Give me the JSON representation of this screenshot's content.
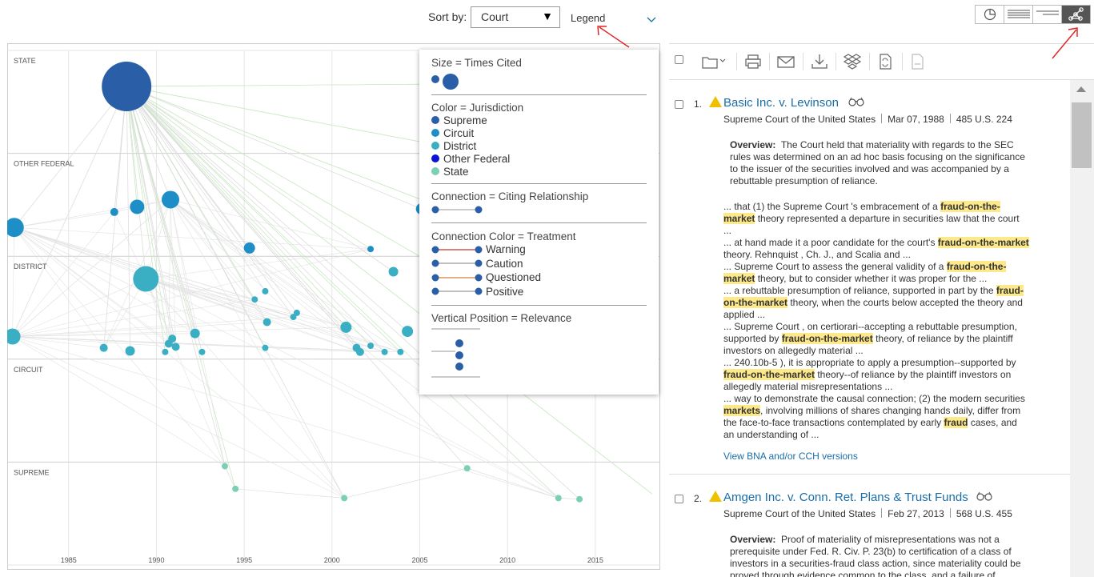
{
  "sort": {
    "label": "Sort by:",
    "value": "Court"
  },
  "legend_toggle": "Legend",
  "view_switch": {
    "items": [
      "pie-chart-icon",
      "full-list-icon",
      "short-list-icon",
      "network-graph-icon"
    ],
    "active": 3
  },
  "colors": {
    "supreme": "#2a5fa8",
    "circuit": "#1e8fc6",
    "district": "#3aafc4",
    "other_federal": "#0a14d8",
    "state": "#7bcfb4",
    "warning": "#c0392b",
    "caution": "#999999",
    "questioned": "#d4813a",
    "positive": "#999999",
    "highlight": "#fde98a",
    "link": "#1a6ea8",
    "flag": "#f0c000"
  },
  "chart_data": {
    "type": "scatter",
    "x_label": "",
    "xlim": [
      1981.5,
      2018.7
    ],
    "x_ticks": [
      1985,
      1990,
      1995,
      2000,
      2005,
      2010,
      2015
    ],
    "lanes": [
      "STATE",
      "OTHER FEDERAL",
      "DISTRICT",
      "CIRCUIT",
      "SUPREME"
    ],
    "grid": true,
    "nodes": [
      {
        "x": 1988.3,
        "lane": "STATE",
        "y": 0.35,
        "size": 31,
        "kind": "supreme"
      },
      {
        "x": 1981.9,
        "lane": "OTHER FEDERAL",
        "y": 0.72,
        "size": 12,
        "kind": "circuit"
      },
      {
        "x": 1987.6,
        "lane": "OTHER FEDERAL",
        "y": 0.57,
        "size": 5,
        "kind": "circuit"
      },
      {
        "x": 1988.9,
        "lane": "OTHER FEDERAL",
        "y": 0.52,
        "size": 9,
        "kind": "circuit"
      },
      {
        "x": 1990.8,
        "lane": "OTHER FEDERAL",
        "y": 0.45,
        "size": 11,
        "kind": "circuit"
      },
      {
        "x": 1995.3,
        "lane": "OTHER FEDERAL",
        "y": 0.92,
        "size": 7,
        "kind": "circuit"
      },
      {
        "x": 2002.2,
        "lane": "OTHER FEDERAL",
        "y": 0.93,
        "size": 4,
        "kind": "circuit"
      },
      {
        "x": 2005.1,
        "lane": "OTHER FEDERAL",
        "y": 0.54,
        "size": 7,
        "kind": "circuit"
      },
      {
        "x": 1981.8,
        "lane": "DISTRICT",
        "y": 0.78,
        "size": 10,
        "kind": "district"
      },
      {
        "x": 1989.4,
        "lane": "DISTRICT",
        "y": 0.22,
        "size": 16,
        "kind": "district"
      },
      {
        "x": 1987.0,
        "lane": "DISTRICT",
        "y": 0.89,
        "size": 5,
        "kind": "district"
      },
      {
        "x": 1988.5,
        "lane": "DISTRICT",
        "y": 0.92,
        "size": 6,
        "kind": "district"
      },
      {
        "x": 1990.7,
        "lane": "DISTRICT",
        "y": 0.85,
        "size": 5,
        "kind": "district"
      },
      {
        "x": 1990.9,
        "lane": "DISTRICT",
        "y": 0.8,
        "size": 5,
        "kind": "district"
      },
      {
        "x": 1991.1,
        "lane": "DISTRICT",
        "y": 0.88,
        "size": 5,
        "kind": "district"
      },
      {
        "x": 1990.5,
        "lane": "DISTRICT",
        "y": 0.93,
        "size": 4,
        "kind": "district"
      },
      {
        "x": 1992.2,
        "lane": "DISTRICT",
        "y": 0.75,
        "size": 6,
        "kind": "district"
      },
      {
        "x": 1992.6,
        "lane": "DISTRICT",
        "y": 0.93,
        "size": 4,
        "kind": "district"
      },
      {
        "x": 1995.6,
        "lane": "DISTRICT",
        "y": 0.42,
        "size": 4,
        "kind": "district"
      },
      {
        "x": 1996.2,
        "lane": "DISTRICT",
        "y": 0.34,
        "size": 4,
        "kind": "district"
      },
      {
        "x": 1996.3,
        "lane": "DISTRICT",
        "y": 0.64,
        "size": 5,
        "kind": "district"
      },
      {
        "x": 1996.2,
        "lane": "DISTRICT",
        "y": 0.89,
        "size": 4,
        "kind": "district"
      },
      {
        "x": 1997.8,
        "lane": "DISTRICT",
        "y": 0.59,
        "size": 4,
        "kind": "district"
      },
      {
        "x": 1998.0,
        "lane": "DISTRICT",
        "y": 0.55,
        "size": 4,
        "kind": "district"
      },
      {
        "x": 2000.8,
        "lane": "DISTRICT",
        "y": 0.69,
        "size": 7,
        "kind": "district"
      },
      {
        "x": 2001.4,
        "lane": "DISTRICT",
        "y": 0.89,
        "size": 5,
        "kind": "district"
      },
      {
        "x": 2001.6,
        "lane": "DISTRICT",
        "y": 0.93,
        "size": 5,
        "kind": "district"
      },
      {
        "x": 2002.2,
        "lane": "DISTRICT",
        "y": 0.87,
        "size": 4,
        "kind": "district"
      },
      {
        "x": 2003.0,
        "lane": "DISTRICT",
        "y": 0.93,
        "size": 4,
        "kind": "district"
      },
      {
        "x": 2003.5,
        "lane": "DISTRICT",
        "y": 0.15,
        "size": 6,
        "kind": "district"
      },
      {
        "x": 2003.9,
        "lane": "DISTRICT",
        "y": 0.93,
        "size": 4,
        "kind": "district"
      },
      {
        "x": 2004.3,
        "lane": "DISTRICT",
        "y": 0.73,
        "size": 7,
        "kind": "district"
      },
      {
        "x": 1993.9,
        "lane": "SUPREME",
        "y": 0.04,
        "size": 4,
        "kind": "state"
      },
      {
        "x": 1994.5,
        "lane": "SUPREME",
        "y": 0.26,
        "size": 4,
        "kind": "state"
      },
      {
        "x": 2000.7,
        "lane": "SUPREME",
        "y": 0.35,
        "size": 4,
        "kind": "state"
      },
      {
        "x": 2007.7,
        "lane": "SUPREME",
        "y": 0.06,
        "size": 4,
        "kind": "state"
      },
      {
        "x": 2012.9,
        "lane": "SUPREME",
        "y": 0.35,
        "size": 4,
        "kind": "state"
      },
      {
        "x": 2014.1,
        "lane": "SUPREME",
        "y": 0.36,
        "size": 4,
        "kind": "state"
      }
    ]
  },
  "legend": {
    "size_title": "Size = Times Cited",
    "color_title": "Color = Jurisdiction",
    "jurisdictions": [
      "Supreme",
      "Circuit",
      "District",
      "Other Federal",
      "State"
    ],
    "connection_title": "Connection = Citing Relationship",
    "treatment_title": "Connection Color = Treatment",
    "treatments": [
      "Warning",
      "Caution",
      "Questioned",
      "Positive"
    ],
    "vertical_title": "Vertical Position = Relevance"
  },
  "toolbar": {
    "icons": [
      "folder-icon",
      "print-icon",
      "email-icon",
      "download-icon",
      "dropbox-icon",
      "convert-icon",
      "export-icon"
    ]
  },
  "results": [
    {
      "num": "1.",
      "title": "Basic Inc. v. Levinson",
      "court": "Supreme Court of the United States",
      "date": "Mar 07, 1988",
      "cite": "485 U.S. 224",
      "overview_label": "Overview:",
      "overview": "The Court held that materiality with regards to the SEC rules was determined on an ad hoc basis focusing on the significance to the issuer of the securities involved and was accompanied by a rebuttable presumption of reliance.",
      "snippets": [
        [
          "... that (1) the Supreme Court 's embracement of a ",
          "fraud-on-the-market",
          " theory represented a departure in securities law that the court ..."
        ],
        [
          "... at hand made it a poor candidate for the court's ",
          "fraud-on-the-market",
          " theory. Rehnquist , Ch. J., and Scalia and ..."
        ],
        [
          "... Supreme Court to assess the general validity of a ",
          "fraud-on-the-market",
          " theory, but to consider whether it was proper for the ..."
        ],
        [
          "... a rebuttable presumption of reliance, supported in part by the ",
          "fraud-on-the-market",
          " theory, when the courts below accepted the theory and applied ..."
        ],
        [
          "... Supreme Court , on certiorari--accepting a rebuttable presumption, supported by ",
          "fraud-on-the-market",
          " theory, of reliance by the plaintiff investors on allegedly material ..."
        ],
        [
          "... 240.10b-5 ), it is appropriate to apply a presumption--supported by ",
          "fraud-on-the-market",
          " theory--of reliance by the plaintiff investors on allegedly material misrepresentations ..."
        ],
        [
          "... way to demonstrate the causal connection; (2) the modern securities ",
          "markets",
          ", involving millions of shares changing hands daily, differ from the face-to-face transactions contemplated by early ",
          "fraud",
          " cases, and an understanding of ..."
        ]
      ],
      "bna_link": "View BNA and/or CCH versions"
    },
    {
      "num": "2.",
      "title": "Amgen Inc. v. Conn. Ret. Plans & Trust Funds",
      "court": "Supreme Court of the United States",
      "date": "Feb 27, 2013",
      "cite": "568 U.S. 455",
      "overview_label": "Overview:",
      "overview": "Proof of materiality of misrepresentations was not a prerequisite under Fed. R. Civ. P. 23(b) to certification of a class of investors in a securities-fraud class action, since materiality could be proved through evidence common to the class, and a failure of"
    }
  ]
}
